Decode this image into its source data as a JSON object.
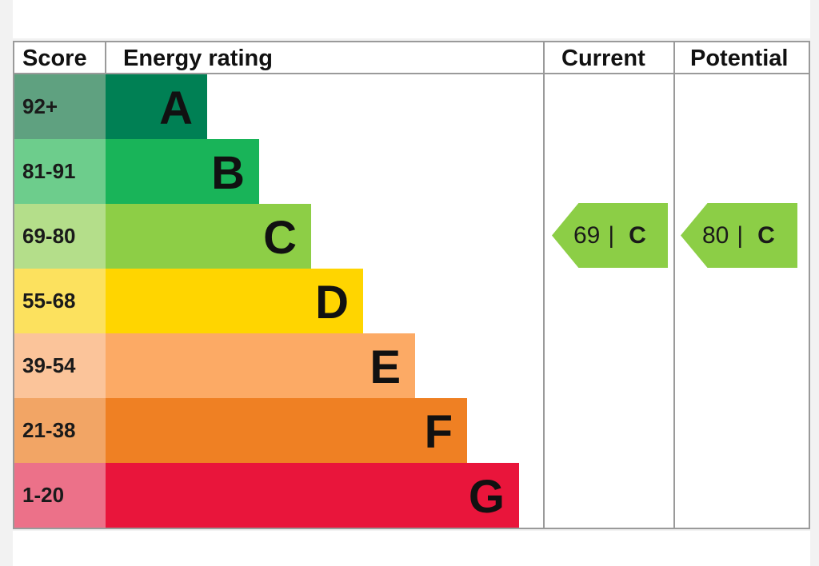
{
  "chart_data": {
    "type": "table",
    "headers": {
      "score": "Score",
      "energy_rating": "Energy rating",
      "current": "Current",
      "potential": "Potential"
    },
    "bands": [
      {
        "score": "92+",
        "letter": "A",
        "band_color": "#008054",
        "score_color": "#5fa180",
        "extent": 1
      },
      {
        "score": "81-91",
        "letter": "B",
        "band_color": "#19b459",
        "score_color": "#6dcd8c",
        "extent": 2
      },
      {
        "score": "69-80",
        "letter": "C",
        "band_color": "#8dce46",
        "score_color": "#b4de8a",
        "extent": 3
      },
      {
        "score": "55-68",
        "letter": "D",
        "band_color": "#ffd500",
        "score_color": "#fce15e",
        "extent": 4
      },
      {
        "score": "39-54",
        "letter": "E",
        "band_color": "#fcaa65",
        "score_color": "#fbc49a",
        "extent": 5
      },
      {
        "score": "21-38",
        "letter": "F",
        "band_color": "#ef8023",
        "score_color": "#f2a565",
        "extent": 6
      },
      {
        "score": "1-20",
        "letter": "G",
        "band_color": "#e9153b",
        "score_color": "#ec7189",
        "extent": 7
      }
    ],
    "current": {
      "value": 69,
      "separator": "|",
      "rating": "C",
      "color": "#8cce46"
    },
    "potential": {
      "value": 80,
      "separator": "|",
      "rating": "C",
      "color": "#8cce46"
    }
  },
  "colors": {
    "grid_line": "#9a9a9a",
    "panel": "#ffffff",
    "background": "#f2f2f2"
  }
}
